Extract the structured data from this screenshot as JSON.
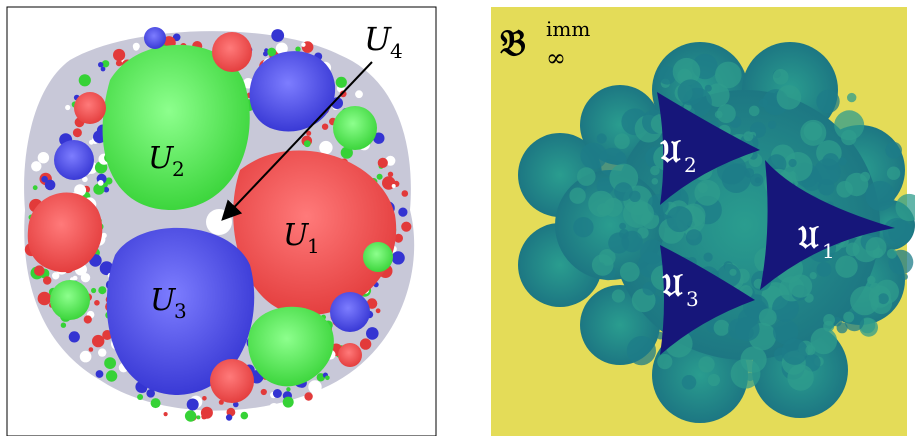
{
  "left_panel": {
    "labels": {
      "u1": {
        "base": "U",
        "sub": "1"
      },
      "u2": {
        "base": "U",
        "sub": "2"
      },
      "u3": {
        "base": "U",
        "sub": "3"
      },
      "u4": {
        "base": "U",
        "sub": "4"
      }
    },
    "colors": {
      "red": "#ee4848",
      "green": "#4ae64a",
      "blue": "#4a4ae6",
      "white": "#ffffff",
      "frame": "#000000"
    }
  },
  "right_panel": {
    "title": {
      "base": "𝔅",
      "sup": "imm",
      "sub": "∞"
    },
    "labels": {
      "u1": {
        "base": "𝔘",
        "sub": "1"
      },
      "u2": {
        "base": "𝔘",
        "sub": "2"
      },
      "u3": {
        "base": "𝔘",
        "sub": "3"
      }
    },
    "colors": {
      "background": "#e4dc58",
      "teal": "#1f8a8a",
      "deep": "#16167a",
      "light": "#3fb69a"
    }
  }
}
